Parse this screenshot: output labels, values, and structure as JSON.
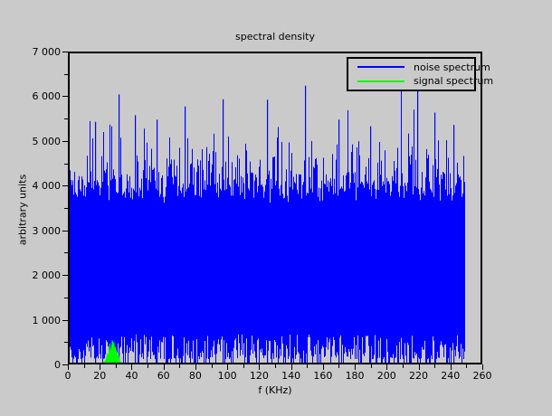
{
  "window": {
    "background_color": "#cacaca",
    "axis_color": "#000000"
  },
  "chart_data": {
    "type": "line",
    "title": "spectral density",
    "xlabel": "f (KHz)",
    "ylabel": "arbitrary units",
    "xlim": [
      0,
      260
    ],
    "ylim": [
      0,
      7000
    ],
    "grid": false,
    "legend_position": "top-right",
    "x_major_ticks": [
      0,
      20,
      40,
      60,
      80,
      100,
      120,
      140,
      160,
      180,
      200,
      220,
      240,
      260
    ],
    "x_minor_step": 10,
    "y_major_ticks": [
      0,
      1000,
      2000,
      3000,
      4000,
      5000,
      6000,
      7000
    ],
    "y_tick_labels": [
      "0",
      "1 000",
      "2 000",
      "3 000",
      "4 000",
      "5 000",
      "6 000",
      "7 000"
    ],
    "y_minor_step": 500,
    "series": [
      {
        "name": "noise spectrum",
        "color": "#0000ff",
        "kind": "dense-noise-band",
        "x_range_khz": [
          0,
          250
        ],
        "band_top_typical_range": [
          3600,
          4800
        ],
        "band_bottom_typical_range": [
          0,
          620
        ],
        "notable_peaks": [
          [
            16,
            5450
          ],
          [
            31,
            6070
          ],
          [
            41,
            5600
          ],
          [
            55,
            5500
          ],
          [
            73,
            5800
          ],
          [
            97,
            5960
          ],
          [
            125,
            5950
          ],
          [
            149,
            6270
          ],
          [
            170,
            5500
          ],
          [
            190,
            5350
          ],
          [
            220,
            6160
          ],
          [
            231,
            5660
          ],
          [
            243,
            5380
          ]
        ],
        "synthesis": {
          "seed": 1337,
          "top_base": 3600,
          "top_jitter": 300,
          "top_exp_scale": 420,
          "top_max": 6320,
          "bottom_zero_prob": 0.22,
          "bottom_min": 80,
          "bottom_spread": 560
        }
      },
      {
        "name": "signal spectrum",
        "color": "#00ff00",
        "kind": "peak",
        "peak_center_khz": 27,
        "peak_height": 500,
        "points": [
          [
            21,
            0
          ],
          [
            22,
            15
          ],
          [
            23,
            60
          ],
          [
            23.5,
            130
          ],
          [
            24,
            210
          ],
          [
            24.5,
            120
          ],
          [
            25,
            270
          ],
          [
            25.5,
            430
          ],
          [
            26,
            200
          ],
          [
            26.5,
            310
          ],
          [
            27,
            500
          ],
          [
            27.5,
            390
          ],
          [
            28,
            460
          ],
          [
            28.5,
            230
          ],
          [
            29,
            360
          ],
          [
            29.5,
            160
          ],
          [
            30,
            230
          ],
          [
            30.5,
            95
          ],
          [
            31,
            140
          ],
          [
            31.5,
            45
          ],
          [
            32,
            12
          ],
          [
            33,
            0
          ]
        ]
      }
    ]
  }
}
